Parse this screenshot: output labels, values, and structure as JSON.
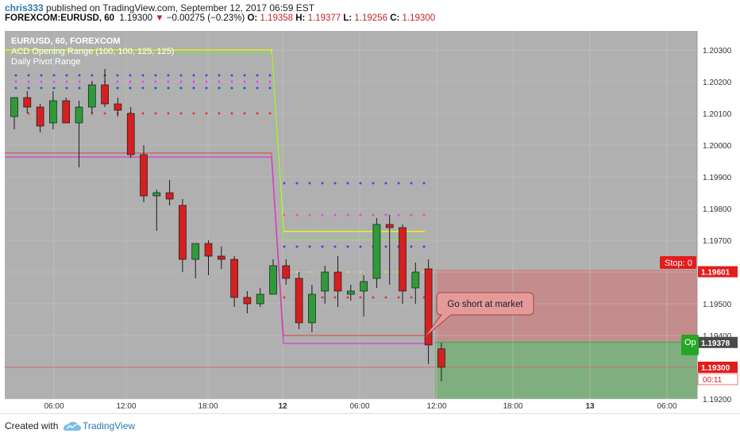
{
  "header": {
    "author": "chris333",
    "published": "published on TradingView.com, September 12, 2017 06:59 EST",
    "symbol_line": "FOREXCOM:EURUSD, 60",
    "last": "1.19300",
    "change_arrow": "▼",
    "change": "−0.00275 (−0.23%)",
    "o_label": "O:",
    "o_val": "1.19358",
    "h_label": "H:",
    "h_val": "1.19377",
    "l_label": "L:",
    "l_val": "1.19256",
    "c_label": "C:",
    "c_val": "1.19300"
  },
  "legend": {
    "line1": "EUR/USD, 60, FOREXCOM",
    "line2": "ACD Opening Range (100, 100, 125, 125)",
    "line3": "Daily Pivot Range"
  },
  "annotation": {
    "callout": "Go short at market",
    "stop_label": "Stop: 0",
    "open_label": "Op"
  },
  "footer": {
    "created": "Created with",
    "brand": "TradingView"
  },
  "colors": {
    "bg": "#b0b0b0",
    "bull": "#2e9a3a",
    "bear": "#d42020",
    "acd_upper": "#e6ff00",
    "acd_lower": "#d43cd4",
    "stop_zone": "#c48c8c",
    "target_zone": "#7fae7f"
  },
  "chart_data": {
    "type": "candlestick",
    "symbol": "FOREXCOM:EURUSD",
    "timeframe": "60",
    "ylim": [
      1.192,
      1.2036
    ],
    "y_ticks": [
      "1.20300",
      "1.20200",
      "1.20100",
      "1.20000",
      "1.19900",
      "1.19800",
      "1.19700",
      "1.19600",
      "1.19500",
      "1.19400",
      "1.19300",
      "1.19200"
    ],
    "x_ticks": [
      "06:00",
      "12:00",
      "18:00",
      "12",
      "06:00",
      "12:00",
      "18:00",
      "13",
      "06:00"
    ],
    "price_labels": {
      "stop": "1.19601",
      "entry": "1.19378",
      "last": "1.19300",
      "countdown": "00:11"
    },
    "candles": [
      {
        "o": 1.2009,
        "h": 1.2015,
        "l": 1.2005,
        "c": 1.2015
      },
      {
        "o": 1.2015,
        "h": 1.2017,
        "l": 1.201,
        "c": 1.2012
      },
      {
        "o": 1.2012,
        "h": 1.2013,
        "l": 1.2004,
        "c": 1.2006
      },
      {
        "o": 1.2007,
        "h": 1.2017,
        "l": 1.2005,
        "c": 1.2014
      },
      {
        "o": 1.2014,
        "h": 1.2015,
        "l": 1.2008,
        "c": 1.2007
      },
      {
        "o": 1.2007,
        "h": 1.2014,
        "l": 1.1993,
        "c": 1.2012
      },
      {
        "o": 1.2012,
        "h": 1.202,
        "l": 1.201,
        "c": 1.2019
      },
      {
        "o": 1.2019,
        "h": 1.2024,
        "l": 1.2012,
        "c": 1.2013
      },
      {
        "o": 1.2013,
        "h": 1.2015,
        "l": 1.2009,
        "c": 1.2011
      },
      {
        "o": 1.201,
        "h": 1.2012,
        "l": 1.1996,
        "c": 1.1997
      },
      {
        "o": 1.1997,
        "h": 1.2,
        "l": 1.1982,
        "c": 1.1984
      },
      {
        "o": 1.1984,
        "h": 1.1986,
        "l": 1.1973,
        "c": 1.1985
      },
      {
        "o": 1.1985,
        "h": 1.1989,
        "l": 1.1981,
        "c": 1.1983
      },
      {
        "o": 1.1981,
        "h": 1.1983,
        "l": 1.196,
        "c": 1.1964
      },
      {
        "o": 1.1964,
        "h": 1.1969,
        "l": 1.1958,
        "c": 1.1969
      },
      {
        "o": 1.1969,
        "h": 1.197,
        "l": 1.1959,
        "c": 1.1965
      },
      {
        "o": 1.1965,
        "h": 1.1968,
        "l": 1.1961,
        "c": 1.1964
      },
      {
        "o": 1.1964,
        "h": 1.1965,
        "l": 1.1949,
        "c": 1.1952
      },
      {
        "o": 1.1952,
        "h": 1.1954,
        "l": 1.1947,
        "c": 1.195
      },
      {
        "o": 1.195,
        "h": 1.1955,
        "l": 1.1949,
        "c": 1.1953
      },
      {
        "o": 1.1953,
        "h": 1.1964,
        "l": 1.1953,
        "c": 1.1962
      },
      {
        "o": 1.1962,
        "h": 1.1964,
        "l": 1.1956,
        "c": 1.1958
      },
      {
        "o": 1.1958,
        "h": 1.196,
        "l": 1.1942,
        "c": 1.1944
      },
      {
        "o": 1.1944,
        "h": 1.1956,
        "l": 1.1941,
        "c": 1.1953
      },
      {
        "o": 1.1954,
        "h": 1.1962,
        "l": 1.195,
        "c": 1.196
      },
      {
        "o": 1.196,
        "h": 1.1965,
        "l": 1.1949,
        "c": 1.1954
      },
      {
        "o": 1.1953,
        "h": 1.1956,
        "l": 1.1951,
        "c": 1.1954
      },
      {
        "o": 1.1954,
        "h": 1.1959,
        "l": 1.1946,
        "c": 1.1957
      },
      {
        "o": 1.1958,
        "h": 1.1977,
        "l": 1.1955,
        "c": 1.1975
      },
      {
        "o": 1.1975,
        "h": 1.1978,
        "l": 1.1956,
        "c": 1.1974
      },
      {
        "o": 1.1974,
        "h": 1.1975,
        "l": 1.195,
        "c": 1.1954
      },
      {
        "o": 1.1955,
        "h": 1.1963,
        "l": 1.195,
        "c": 1.196
      },
      {
        "o": 1.1961,
        "h": 1.1964,
        "l": 1.1931,
        "c": 1.1937
      },
      {
        "o": 1.19358,
        "h": 1.19377,
        "l": 1.19256,
        "c": 1.193
      }
    ],
    "acd_upper_before": 1.203,
    "acd_upper_after": 1.19728,
    "acd_lower_before": 1.19975,
    "acd_lower_after": 1.194,
    "pivot_dots_day1": [
      1.2022,
      1.202,
      1.2018,
      1.201
    ],
    "pivot_dots_day2": [
      1.1988,
      1.1978,
      1.1968,
      1.196,
      1.1952
    ]
  }
}
